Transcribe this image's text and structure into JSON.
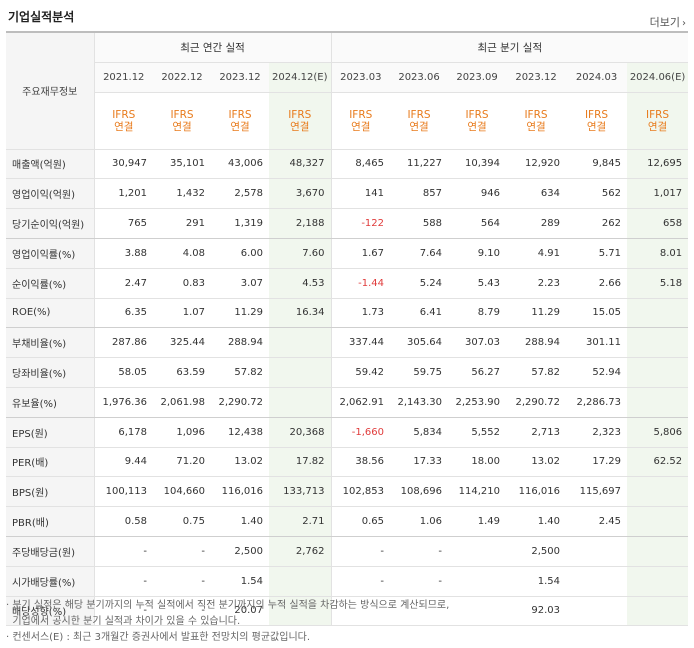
{
  "title": "기업실적분석",
  "more": "더보기",
  "header": {
    "main_label": "주요재무정보",
    "annual_title": "최근 연간 실적",
    "quarter_title": "최근 분기 실적",
    "periods": [
      "2021.12",
      "2022.12",
      "2023.12",
      "2024.12(E)",
      "2023.03",
      "2023.06",
      "2023.09",
      "2023.12",
      "2024.03",
      "2024.06(E)"
    ],
    "ifrs_line1": "IFRS",
    "ifrs_line2": "연결"
  },
  "rows": [
    {
      "label": "매출액(억원)",
      "values": [
        "30,947",
        "35,101",
        "43,006",
        "48,327",
        "8,465",
        "11,227",
        "10,394",
        "12,920",
        "9,845",
        "12,695"
      ]
    },
    {
      "label": "영업이익(억원)",
      "values": [
        "1,201",
        "1,432",
        "2,578",
        "3,670",
        "141",
        "857",
        "946",
        "634",
        "562",
        "1,017"
      ]
    },
    {
      "label": "당기순이익(억원)",
      "values": [
        "765",
        "291",
        "1,319",
        "2,188",
        "-122",
        "588",
        "564",
        "289",
        "262",
        "658"
      ]
    },
    {
      "label": "영업이익률(%)",
      "values": [
        "3.88",
        "4.08",
        "6.00",
        "7.60",
        "1.67",
        "7.64",
        "9.10",
        "4.91",
        "5.71",
        "8.01"
      ]
    },
    {
      "label": "순이익률(%)",
      "values": [
        "2.47",
        "0.83",
        "3.07",
        "4.53",
        "-1.44",
        "5.24",
        "5.43",
        "2.23",
        "2.66",
        "5.18"
      ]
    },
    {
      "label": "ROE(%)",
      "values": [
        "6.35",
        "1.07",
        "11.29",
        "16.34",
        "1.73",
        "6.41",
        "8.79",
        "11.29",
        "15.05",
        ""
      ]
    },
    {
      "label": "부채비율(%)",
      "values": [
        "287.86",
        "325.44",
        "288.94",
        "",
        "337.44",
        "305.64",
        "307.03",
        "288.94",
        "301.11",
        ""
      ]
    },
    {
      "label": "당좌비율(%)",
      "values": [
        "58.05",
        "63.59",
        "57.82",
        "",
        "59.42",
        "59.75",
        "56.27",
        "57.82",
        "52.94",
        ""
      ]
    },
    {
      "label": "유보율(%)",
      "values": [
        "1,976.36",
        "2,061.98",
        "2,290.72",
        "",
        "2,062.91",
        "2,143.30",
        "2,253.90",
        "2,290.72",
        "2,286.73",
        ""
      ]
    },
    {
      "label": "EPS(원)",
      "values": [
        "6,178",
        "1,096",
        "12,438",
        "20,368",
        "-1,660",
        "5,834",
        "5,552",
        "2,713",
        "2,323",
        "5,806"
      ]
    },
    {
      "label": "PER(배)",
      "values": [
        "9.44",
        "71.20",
        "13.02",
        "17.82",
        "38.56",
        "17.33",
        "18.00",
        "13.02",
        "17.29",
        "62.52"
      ]
    },
    {
      "label": "BPS(원)",
      "values": [
        "100,113",
        "104,660",
        "116,016",
        "133,713",
        "102,853",
        "108,696",
        "114,210",
        "116,016",
        "115,697",
        ""
      ]
    },
    {
      "label": "PBR(배)",
      "values": [
        "0.58",
        "0.75",
        "1.40",
        "2.71",
        "0.65",
        "1.06",
        "1.49",
        "1.40",
        "2.45",
        ""
      ]
    },
    {
      "label": "주당배당금(원)",
      "values": [
        "-",
        "-",
        "2,500",
        "2,762",
        "-",
        "-",
        "",
        "2,500",
        "",
        ""
      ]
    },
    {
      "label": "시가배당률(%)",
      "values": [
        "-",
        "-",
        "1.54",
        "",
        "-",
        "-",
        "",
        "1.54",
        "",
        ""
      ]
    },
    {
      "label": "배당성향(%)",
      "values": [
        "-",
        "-",
        "20.07",
        "",
        "",
        "",
        "",
        "92.03",
        "",
        ""
      ]
    }
  ],
  "notes": [
    "· 분기 실적은 해당 분기까지의 누적 실적에서 직전 분기까지의 누적 실적을 차감하는 방식으로 계산되므로,",
    "  기업에서 공시한 분기 실적과 차이가 있을 수 있습니다.",
    "· 컨센서스(E) : 최근 3개월간 증권사에서 발표한 전망치의 평균값입니다."
  ],
  "colors": {
    "ifrs": "#e87b1c",
    "negative": "#e03c3c",
    "estimate_bg": "#f1f7ee"
  }
}
